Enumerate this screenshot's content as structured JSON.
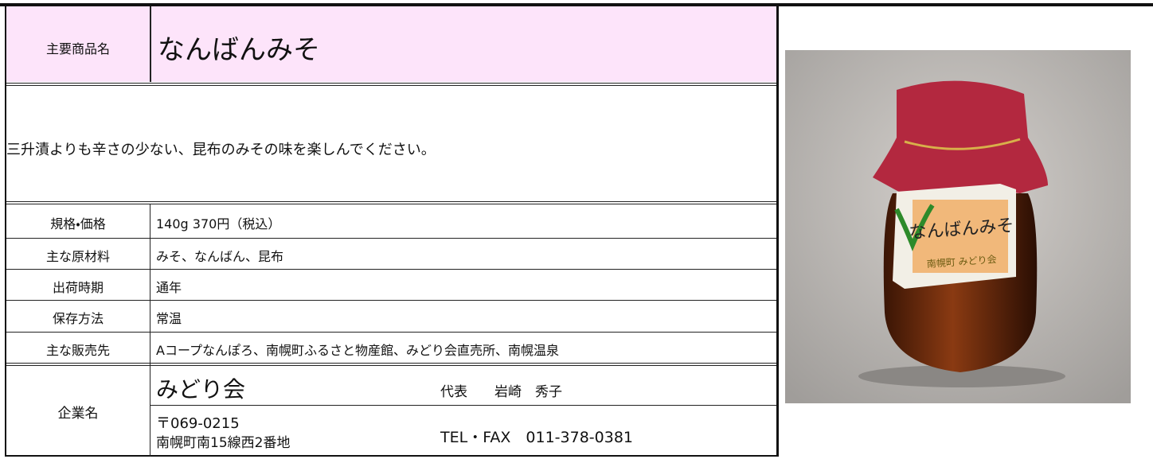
{
  "header": {
    "label": "主要商品名",
    "product_name": "なんばんみそ"
  },
  "description": "三升漬よりも辛さの少ない、昆布のみその味を楽しんでください。",
  "specs": [
    {
      "label": "規格・価格",
      "value": "140g 370円（税込）"
    },
    {
      "label": "主な原材料",
      "value": "みそ、なんばん、昆布"
    },
    {
      "label": "出荷時期",
      "value": "通年"
    },
    {
      "label": "保存方法",
      "value": "常温"
    },
    {
      "label": "主な販売先",
      "value": "Aコープなんぽろ、南幌町ふるさと物産館、みどり会直売所、南幌温泉"
    }
  ],
  "company": {
    "label": "企業名",
    "name": "みどり会",
    "representative": "代表　　岩崎　秀子",
    "postal": "〒069-0215",
    "address": "南幌町南15線西2番地",
    "contact": "TEL・FAX　011-378-0381"
  },
  "photo": {
    "label_title": "なんばんみそ",
    "label_sub": "南幌町 みどり会"
  }
}
